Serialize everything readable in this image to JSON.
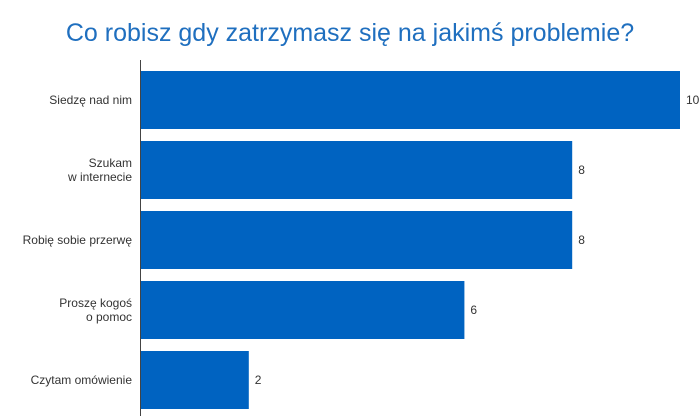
{
  "chart_data": {
    "type": "bar",
    "orientation": "horizontal",
    "title": "Co robisz gdy zatrzymasz się na jakimś problemie?",
    "categories": [
      "Siedzę nad nim",
      "Szukam\nw internecie",
      "Robię sobie przerwę",
      "Proszę kogoś\no pomoc",
      "Czytam omówienie"
    ],
    "values": [
      10,
      8,
      8,
      6,
      2
    ],
    "xlim": [
      0,
      10
    ],
    "grid": false,
    "legend": "none",
    "bar_color": "#0063c1"
  }
}
